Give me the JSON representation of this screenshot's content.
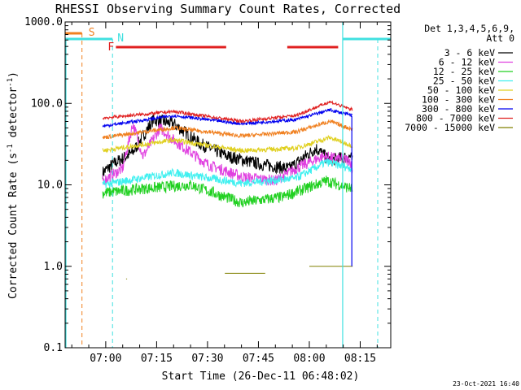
{
  "chart_data": {
    "type": "line",
    "title": "RHESSI Observing Summary Count Rates, Corrected",
    "xlabel": "Start Time (26-Dec-11 06:48:02)",
    "ylabel_main": "Corrected Count Rate (s",
    "ylabel_sup1": "-1",
    "ylabel_mid": " detector",
    "ylabel_sup2": "-1",
    "ylabel_end": ")",
    "y_scale": "log",
    "ylim": [
      0.1,
      1000
    ],
    "xlim": [
      "06:48:02",
      "08:24:00"
    ],
    "x_ticks": [
      "07:00",
      "07:15",
      "07:30",
      "07:45",
      "08:00",
      "08:15"
    ],
    "y_ticks": [
      "0.1",
      "1.0",
      "10.0",
      "100.0",
      "1000.0"
    ],
    "legend_header": [
      "Det 1,3,4,5,6,9,",
      "Att 0"
    ],
    "legend_position": "top-right",
    "footer_date": "23-Oct-2021 16:40",
    "flags": [
      {
        "label": "S",
        "color": "#f08020"
      },
      {
        "label": "N",
        "color": "#40e0e0"
      },
      {
        "label": "F",
        "color": "#e02020"
      }
    ],
    "series": [
      {
        "name": "3 - 6 keV",
        "color": "#000000"
      },
      {
        "name": "6 - 12 keV",
        "color": "#e040e0"
      },
      {
        "name": "12 - 25 keV",
        "color": "#20d020"
      },
      {
        "name": "25 - 50 keV",
        "color": "#40f0f0"
      },
      {
        "name": "50 - 100 keV",
        "color": "#e0d020"
      },
      {
        "name": "100 - 300 keV",
        "color": "#f08020"
      },
      {
        "name": "300 - 800 keV",
        "color": "#0000f0"
      },
      {
        "name": "800 - 7000 keV",
        "color": "#e02020"
      },
      {
        "name": "7000 - 15000 keV",
        "color": "#808000"
      }
    ]
  }
}
